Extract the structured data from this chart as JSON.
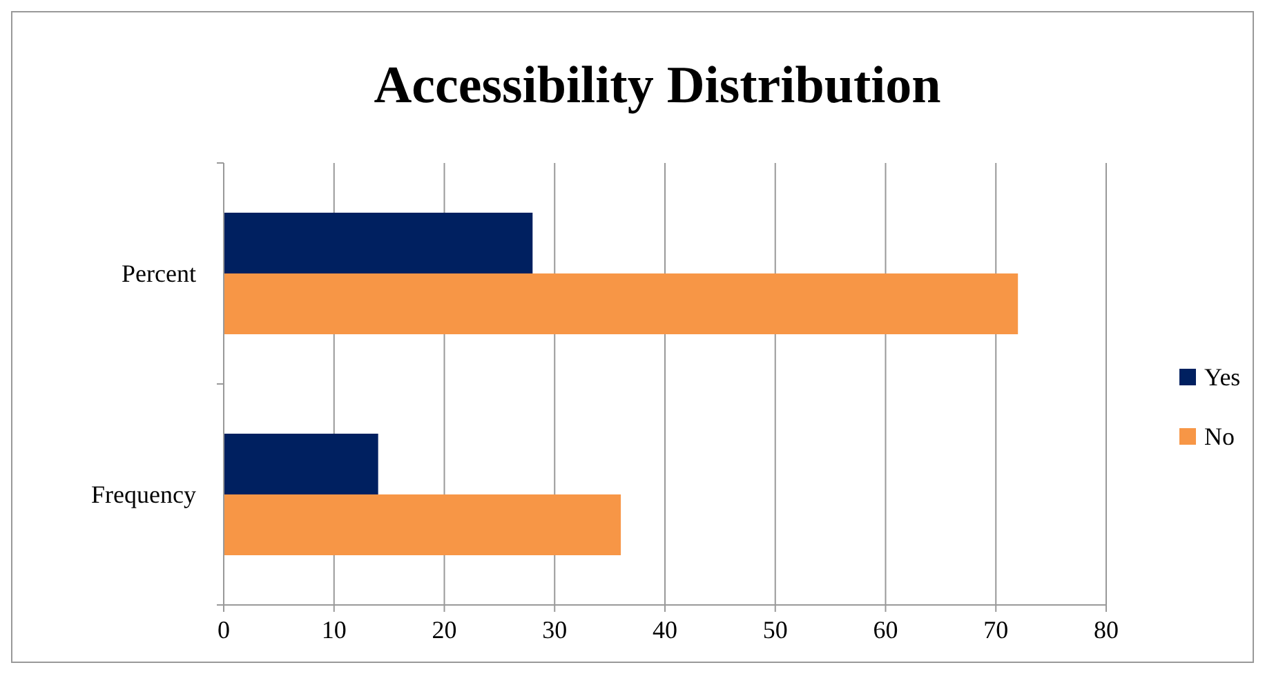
{
  "chart_data": {
    "type": "bar",
    "orientation": "horizontal",
    "title": "Accessibility Distribution",
    "categories": [
      "Percent",
      "Frequency"
    ],
    "series": [
      {
        "name": "Yes",
        "color": "#002060",
        "values": [
          28,
          14
        ]
      },
      {
        "name": "No",
        "color": "#f79646",
        "values": [
          72,
          36
        ]
      }
    ],
    "xlim": [
      0,
      80
    ],
    "xticks": [
      0,
      10,
      20,
      30,
      40,
      50,
      60,
      70,
      80
    ],
    "grid": "x",
    "legend": "right"
  }
}
